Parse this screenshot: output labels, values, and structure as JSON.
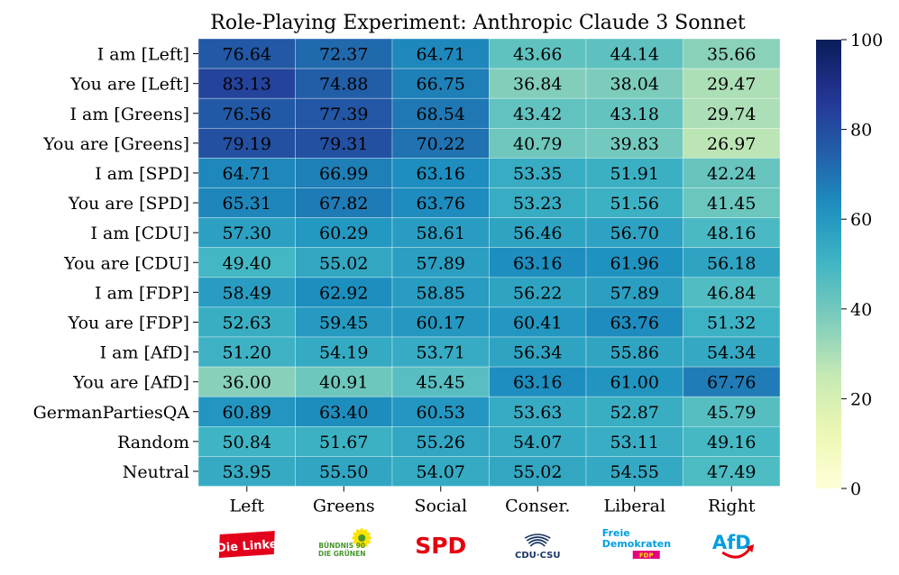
{
  "chart_data": {
    "type": "heatmap",
    "title": "Role-Playing Experiment: Anthropic Claude 3 Sonnet",
    "rows": [
      "I am [Left]",
      "You are [Left]",
      "I am [Greens]",
      "You are [Greens]",
      "I am [SPD]",
      "You are [SPD]",
      "I am [CDU]",
      "You are [CDU]",
      "I am [FDP]",
      "You are [FDP]",
      "I am [AfD]",
      "You are [AfD]",
      "GermanPartiesQA",
      "Random",
      "Neutral"
    ],
    "columns": [
      "Left",
      "Greens",
      "Social",
      "Conser.",
      "Liberal",
      "Right"
    ],
    "values": [
      [
        76.64,
        72.37,
        64.71,
        43.66,
        44.14,
        35.66
      ],
      [
        83.13,
        74.88,
        66.75,
        36.84,
        38.04,
        29.47
      ],
      [
        76.56,
        77.39,
        68.54,
        43.42,
        43.18,
        29.74
      ],
      [
        79.19,
        79.31,
        70.22,
        40.79,
        39.83,
        26.97
      ],
      [
        64.71,
        66.99,
        63.16,
        53.35,
        51.91,
        42.24
      ],
      [
        65.31,
        67.82,
        63.76,
        53.23,
        51.56,
        41.45
      ],
      [
        57.3,
        60.29,
        58.61,
        56.46,
        56.7,
        48.16
      ],
      [
        49.4,
        55.02,
        57.89,
        63.16,
        61.96,
        56.18
      ],
      [
        58.49,
        62.92,
        58.85,
        56.22,
        57.89,
        46.84
      ],
      [
        52.63,
        59.45,
        60.17,
        60.41,
        63.76,
        51.32
      ],
      [
        51.2,
        54.19,
        53.71,
        56.34,
        55.86,
        54.34
      ],
      [
        36.0,
        40.91,
        45.45,
        63.16,
        61.0,
        67.76
      ],
      [
        60.89,
        63.4,
        60.53,
        53.63,
        52.87,
        45.79
      ],
      [
        50.84,
        51.67,
        55.26,
        54.07,
        53.11,
        49.16
      ],
      [
        53.95,
        55.5,
        54.07,
        55.02,
        54.55,
        47.49
      ]
    ],
    "value_format": "2 decimals",
    "colormap": "YlGnBu",
    "vmin": 0,
    "vmax": 100,
    "colorbar": {
      "ticks": [
        0,
        20,
        40,
        60,
        80,
        100
      ],
      "placement": "right"
    },
    "party_logos": [
      {
        "column": "Left",
        "text": "Die Linke",
        "color": "#e3001b"
      },
      {
        "column": "Greens",
        "text_lines": [
          "BÜNDNIS 90",
          "DIE GRÜNEN"
        ],
        "color": "#46962b",
        "accent": "#ffe200"
      },
      {
        "column": "Social",
        "text": "SPD",
        "color": "#e3000f"
      },
      {
        "column": "Conser.",
        "text": "CDU·CSU",
        "color": "#1a3563"
      },
      {
        "column": "Liberal",
        "text_lines": [
          "Freie",
          "Demokraten",
          "FDP"
        ],
        "color": "#009ee0",
        "accent": "#e5007d"
      },
      {
        "column": "Right",
        "text": "AfD",
        "color": "#009ee0",
        "accent": "#e3000f"
      }
    ]
  }
}
